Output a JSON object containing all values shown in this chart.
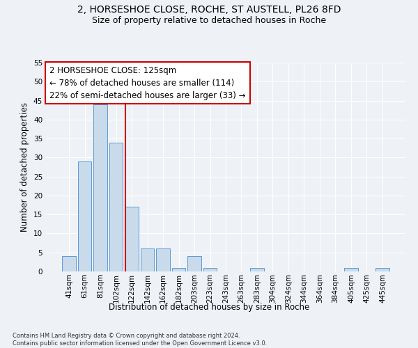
{
  "title1": "2, HORSESHOE CLOSE, ROCHE, ST AUSTELL, PL26 8FD",
  "title2": "Size of property relative to detached houses in Roche",
  "xlabel": "Distribution of detached houses by size in Roche",
  "ylabel": "Number of detached properties",
  "bar_labels": [
    "41sqm",
    "61sqm",
    "81sqm",
    "102sqm",
    "122sqm",
    "142sqm",
    "162sqm",
    "182sqm",
    "203sqm",
    "223sqm",
    "243sqm",
    "263sqm",
    "283sqm",
    "304sqm",
    "324sqm",
    "344sqm",
    "364sqm",
    "384sqm",
    "405sqm",
    "425sqm",
    "445sqm"
  ],
  "bar_values": [
    4,
    29,
    44,
    34,
    17,
    6,
    6,
    1,
    4,
    1,
    0,
    0,
    1,
    0,
    0,
    0,
    0,
    0,
    1,
    0,
    1
  ],
  "bar_color": "#c9daea",
  "bar_edge_color": "#5b9bd5",
  "vline_color": "#cc0000",
  "annotation_lines": [
    "2 HORSESHOE CLOSE: 125sqm",
    "← 78% of detached houses are smaller (114)",
    "22% of semi-detached houses are larger (33) →"
  ],
  "annotation_box_color": "#ffffff",
  "annotation_box_edge": "#cc0000",
  "ylim": [
    0,
    55
  ],
  "yticks": [
    0,
    5,
    10,
    15,
    20,
    25,
    30,
    35,
    40,
    45,
    50,
    55
  ],
  "footnote": "Contains HM Land Registry data © Crown copyright and database right 2024.\nContains public sector information licensed under the Open Government Licence v3.0.",
  "bg_color": "#eef2f7",
  "grid_color": "#ffffff",
  "title_fontsize": 10,
  "subtitle_fontsize": 9,
  "axis_label_fontsize": 8.5,
  "tick_fontsize": 7.5,
  "annot_fontsize": 8.5,
  "footnote_fontsize": 6.0
}
